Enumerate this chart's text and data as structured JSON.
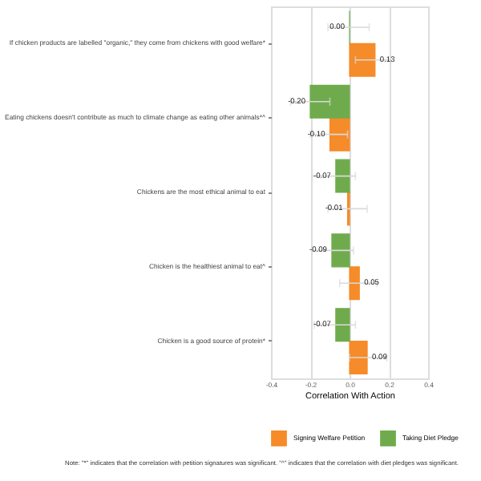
{
  "chart_data": {
    "type": "bar",
    "orientation": "horizontal",
    "categories": [
      "If chicken products are labelled \"organic,\" they come from chickens with good welfare*",
      "Eating chickens doesn't contribute as much to climate change as eating other animals*^",
      "Chickens are the most ethical animal to eat",
      "Chicken is the healthiest animal to eat^",
      "Chicken is a good source of protein*"
    ],
    "series": [
      {
        "name": "Signing Welfare Petition",
        "color": "#f68b29",
        "values": [
          0.13,
          -0.1,
          -0.01,
          0.05,
          0.09
        ],
        "value_labels": [
          "0.13",
          "-0.10",
          "-0.01",
          "0.05",
          "0.09"
        ],
        "errors": [
          [
            0.03,
            0.21
          ],
          [
            -0.2,
            -0.01
          ],
          [
            -0.11,
            0.09
          ],
          [
            -0.05,
            0.14
          ],
          [
            0.0,
            0.19
          ]
        ]
      },
      {
        "name": "Taking Diet Pledge",
        "color": "#6fab4c",
        "values": [
          0.0,
          -0.2,
          -0.07,
          -0.09,
          -0.07
        ],
        "value_labels": [
          "0.00",
          "-0.20",
          "-0.07",
          "-0.09",
          "-0.07"
        ],
        "errors": [
          [
            -0.11,
            0.1
          ],
          [
            -0.3,
            -0.1
          ],
          [
            -0.19,
            0.03
          ],
          [
            -0.19,
            0.02
          ],
          [
            -0.18,
            0.03
          ]
        ]
      }
    ],
    "xlabel": "Correlation With Action",
    "xlim": [
      -0.4,
      0.4
    ],
    "xticks": [
      -0.4,
      -0.2,
      {
        "value": 0,
        "label": "0.0"
      },
      0.2,
      0.4
    ],
    "grid": "x",
    "legend": "bottom right",
    "annotations": [
      "Note: \"*\" indicates that the correlation with petition signatures was significant. \"^\" indicates that the correlation with diet pledges was significant."
    ]
  }
}
